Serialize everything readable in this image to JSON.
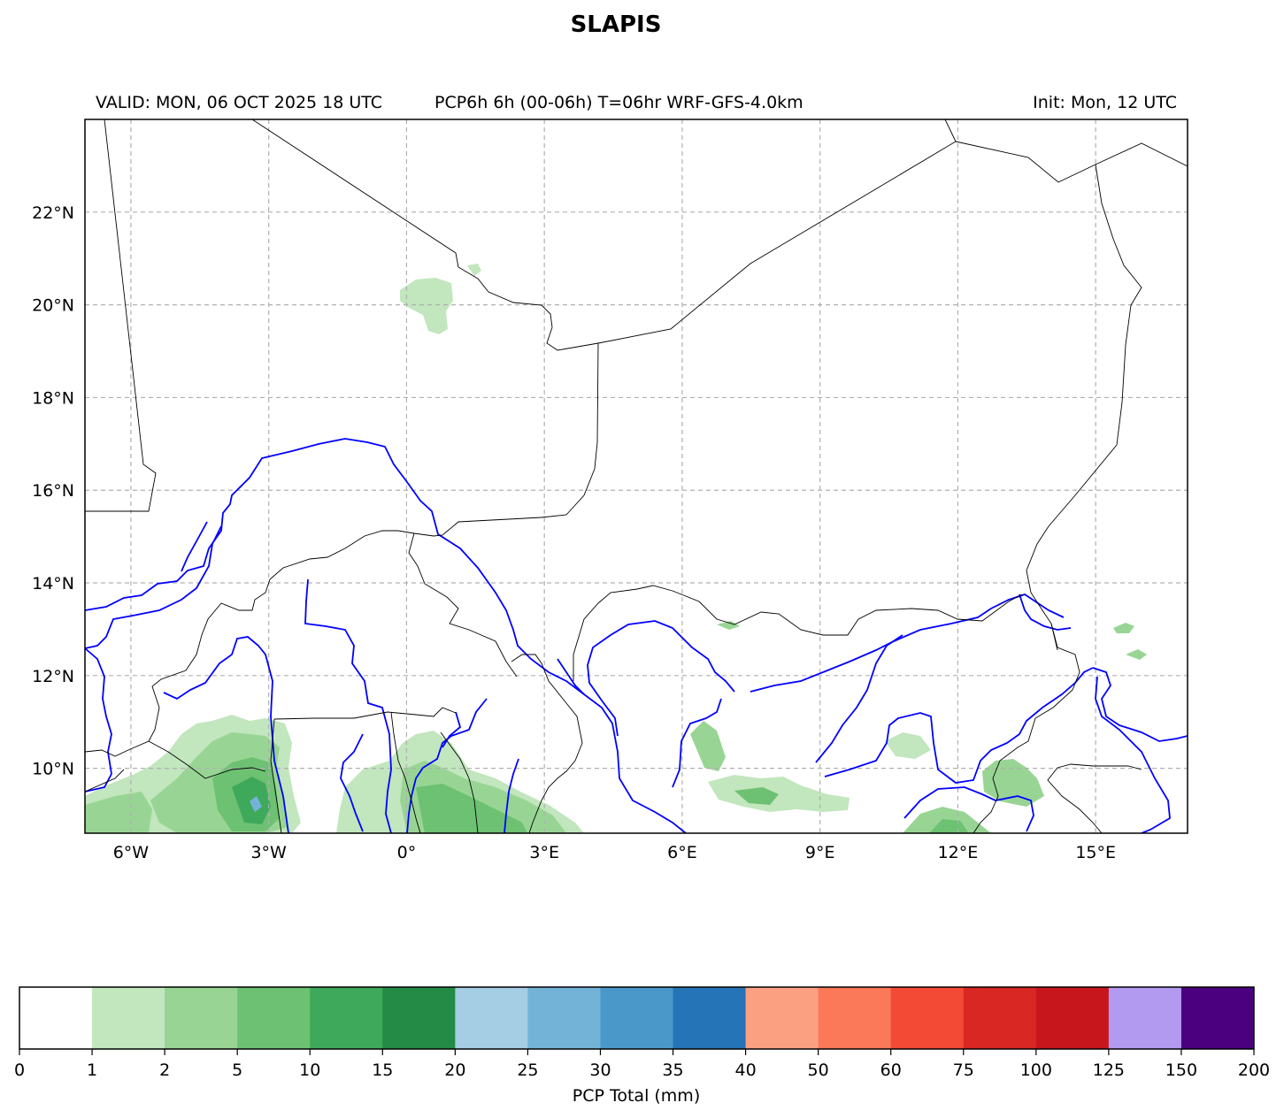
{
  "title": "SLAPIS",
  "header": {
    "valid": "VALID: MON, 06 OCT 2025 18 UTC",
    "product": "PCP6h 6h (00-06h) T=06hr WRF-GFS-4.0km",
    "init": "Init: Mon, 12 UTC"
  },
  "map": {
    "lon_range": [
      -7,
      17
    ],
    "lat_range": [
      8.6,
      24
    ],
    "lon_ticks": [
      {
        "value": -6,
        "label": "6°W"
      },
      {
        "value": -3,
        "label": "3°W"
      },
      {
        "value": 0,
        "label": "0°"
      },
      {
        "value": 3,
        "label": "3°E"
      },
      {
        "value": 6,
        "label": "6°E"
      },
      {
        "value": 9,
        "label": "9°E"
      },
      {
        "value": 12,
        "label": "12°E"
      },
      {
        "value": 15,
        "label": "15°E"
      }
    ],
    "lat_ticks": [
      {
        "value": 22,
        "label": "22°N"
      },
      {
        "value": 20,
        "label": "20°N"
      },
      {
        "value": 18,
        "label": "18°N"
      },
      {
        "value": 16,
        "label": "16°N"
      },
      {
        "value": 14,
        "label": "14°N"
      },
      {
        "value": 12,
        "label": "12°N"
      },
      {
        "value": 10,
        "label": "10°N"
      }
    ],
    "grid": true,
    "colors": {
      "border": "#000000",
      "river": "#0000ff",
      "grid": "#b0b0b0"
    }
  },
  "colorbar": {
    "label": "PCP Total (mm)",
    "levels": [
      "0",
      "1",
      "2",
      "5",
      "10",
      "15",
      "20",
      "25",
      "30",
      "35",
      "40",
      "50",
      "60",
      "75",
      "100",
      "125",
      "150",
      "200"
    ],
    "colors": [
      "#ffffff",
      "#c2e6bd",
      "#98d594",
      "#6dc172",
      "#3fa95b",
      "#238b45",
      "#a5cde3",
      "#74b3d8",
      "#4a98c9",
      "#2474b7",
      "#fca082",
      "#fb7858",
      "#f24a35",
      "#d92723",
      "#c8161d",
      "#b29af0",
      "#4b0080"
    ]
  }
}
